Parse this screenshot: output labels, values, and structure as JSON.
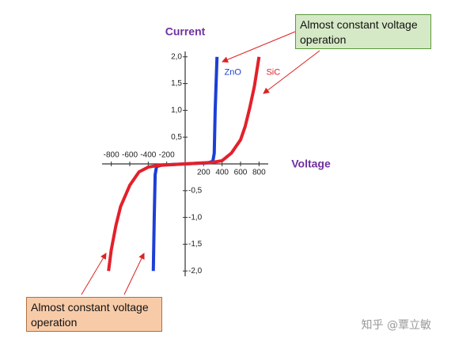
{
  "chart_data": {
    "type": "line",
    "x_label": "Voltage",
    "y_label": "Current",
    "xlim": [
      -900,
      900
    ],
    "ylim": [
      -2.1,
      2.1
    ],
    "xticks": [
      -800,
      -600,
      -400,
      -200,
      200,
      400,
      600,
      800
    ],
    "yticks": [
      {
        "value": 2.0,
        "label": "2,0"
      },
      {
        "value": 1.5,
        "label": "1,5"
      },
      {
        "value": 1.0,
        "label": "1,0"
      },
      {
        "value": 0.5,
        "label": "0,5"
      },
      {
        "value": -0.5,
        "label": "-0,5"
      },
      {
        "value": -1.0,
        "label": "-1,0"
      },
      {
        "value": -1.5,
        "label": "-1,5"
      },
      {
        "value": -2.0,
        "label": "-2,0"
      }
    ],
    "series": [
      {
        "name": "ZnO",
        "color": "#1c3fd6",
        "x": [
          -345,
          -335,
          -325,
          -310,
          -250,
          0,
          250,
          300,
          315,
          325,
          335,
          345
        ],
        "values": [
          -2.0,
          -1.0,
          -0.2,
          -0.05,
          -0.02,
          0,
          0.02,
          0.05,
          0.2,
          1.0,
          1.5,
          2.0
        ]
      },
      {
        "name": "SiC",
        "color": "#e3202b",
        "x": [
          -830,
          -800,
          -750,
          -700,
          -600,
          -500,
          -400,
          -300,
          0,
          300,
          400,
          500,
          600,
          650,
          700,
          750,
          800
        ],
        "values": [
          -2.0,
          -1.6,
          -1.15,
          -0.8,
          -0.4,
          -0.15,
          -0.06,
          -0.03,
          0,
          0.03,
          0.06,
          0.2,
          0.45,
          0.7,
          1.05,
          1.45,
          2.0
        ]
      }
    ],
    "annotations": [
      "Almost constant voltage operation",
      "Almost constant voltage operation"
    ],
    "watermark": "知乎 @覃立敏"
  }
}
